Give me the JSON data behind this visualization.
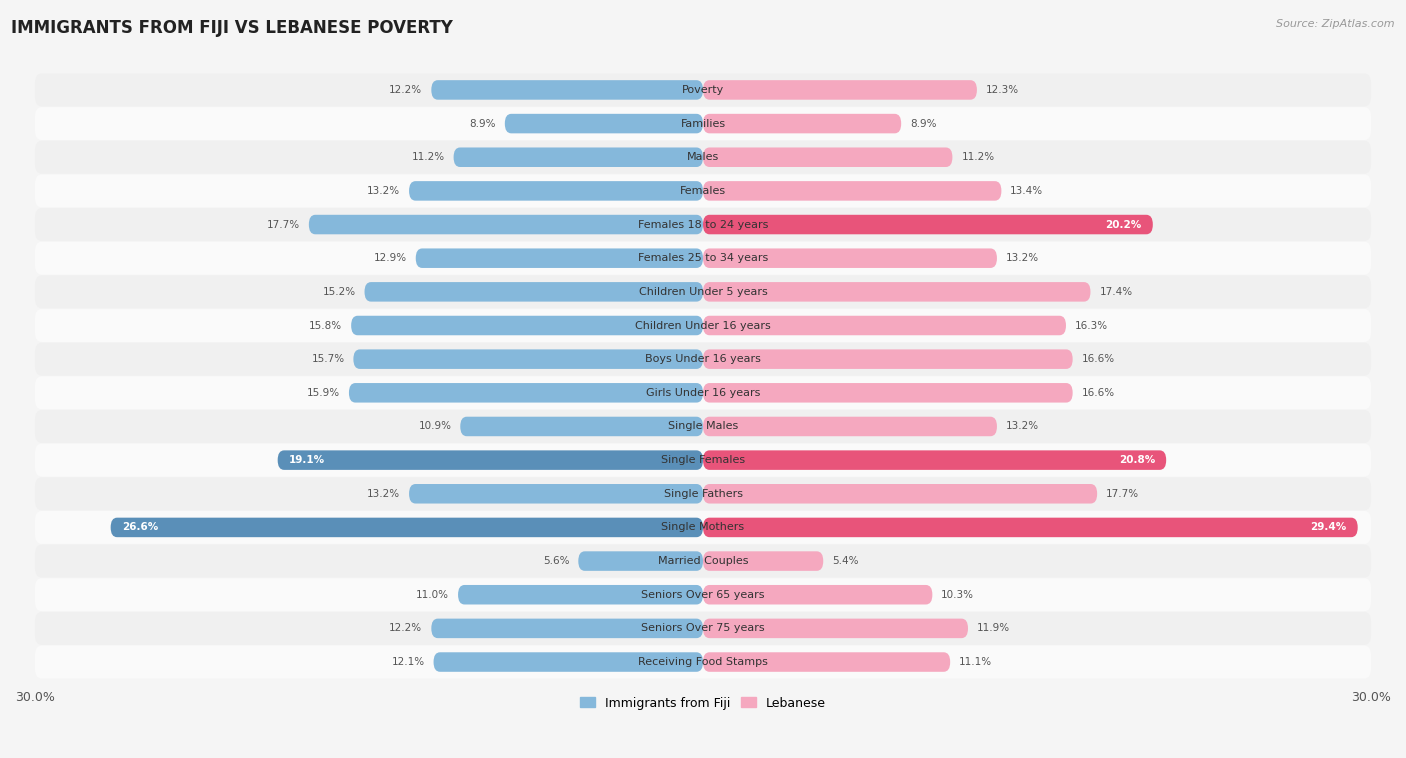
{
  "title": "IMMIGRANTS FROM FIJI VS LEBANESE POVERTY",
  "source": "Source: ZipAtlas.com",
  "categories": [
    "Poverty",
    "Families",
    "Males",
    "Females",
    "Females 18 to 24 years",
    "Females 25 to 34 years",
    "Children Under 5 years",
    "Children Under 16 years",
    "Boys Under 16 years",
    "Girls Under 16 years",
    "Single Males",
    "Single Females",
    "Single Fathers",
    "Single Mothers",
    "Married Couples",
    "Seniors Over 65 years",
    "Seniors Over 75 years",
    "Receiving Food Stamps"
  ],
  "fiji_values": [
    12.2,
    8.9,
    11.2,
    13.2,
    17.7,
    12.9,
    15.2,
    15.8,
    15.7,
    15.9,
    10.9,
    19.1,
    13.2,
    26.6,
    5.6,
    11.0,
    12.2,
    12.1
  ],
  "lebanese_values": [
    12.3,
    8.9,
    11.2,
    13.4,
    20.2,
    13.2,
    17.4,
    16.3,
    16.6,
    16.6,
    13.2,
    20.8,
    17.7,
    29.4,
    5.4,
    10.3,
    11.9,
    11.1
  ],
  "fiji_color": "#85b8db",
  "lebanese_color": "#f5a8bf",
  "fiji_highlight_indices": [
    11,
    13
  ],
  "lebanese_highlight_indices": [
    4,
    11,
    13
  ],
  "fiji_highlight_color": "#5a8fb8",
  "lebanese_highlight_color": "#e8547a",
  "row_color_even": "#f0f0f0",
  "row_color_odd": "#fafafa",
  "background_color": "#f5f5f5",
  "xlim": 30.0,
  "label_fontsize": 8.0,
  "value_fontsize": 7.5,
  "title_fontsize": 12,
  "legend_fontsize": 9
}
